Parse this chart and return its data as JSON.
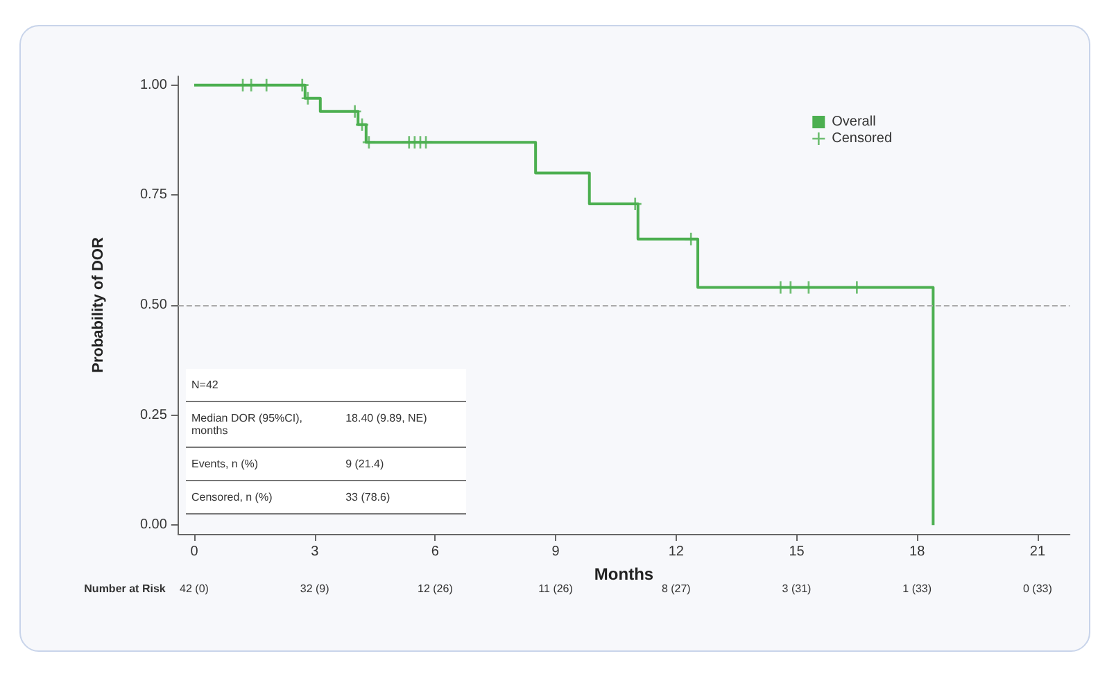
{
  "chart_data": {
    "type": "step",
    "xlabel": "Months",
    "ylabel": "Probability of DOR",
    "xlim": [
      -0.4,
      21.8
    ],
    "xticks": [
      0,
      3,
      6,
      9,
      12,
      15,
      18,
      21
    ],
    "ylim": [
      -0.02,
      1.02
    ],
    "yticks": [
      {
        "value": 0,
        "label": "0.00"
      },
      {
        "value": 0.25,
        "label": "0.25"
      },
      {
        "value": 0.5,
        "label": "0.50"
      },
      {
        "value": 0.75,
        "label": "0.75"
      },
      {
        "value": 1,
        "label": "1.00"
      }
    ],
    "series": [
      {
        "name": "Overall",
        "color": "#4caf50",
        "marker": "none",
        "x": [
          0,
          2.76,
          3.14,
          4.08,
          4.28,
          8.5,
          9.84,
          11.05,
          12.54,
          18.4
        ],
        "values": [
          1,
          0.97,
          0.94,
          0.91,
          0.87,
          0.8,
          0.73,
          0.65,
          0.54,
          0
        ]
      },
      {
        "name": "Censored",
        "type": "scatter",
        "color": "#4caf50",
        "marker": "cross",
        "x": [
          1.21,
          1.42,
          1.8,
          2.69,
          2.83,
          4.0,
          4.18,
          4.35,
          5.35,
          5.49,
          5.63,
          5.77,
          10.98,
          12.37,
          14.6,
          14.85,
          15.3,
          16.5
        ],
        "values": [
          1,
          1,
          1,
          1,
          0.97,
          0.94,
          0.91,
          0.87,
          0.87,
          0.87,
          0.87,
          0.87,
          0.73,
          0.65,
          0.54,
          0.54,
          0.54,
          0.54
        ]
      }
    ],
    "ref_lines": [
      {
        "axis": "y",
        "value": 0.5,
        "label": null,
        "color": "#aaaaaa",
        "line_style": "dashed"
      }
    ],
    "annotations": [
      "N=42",
      "Median DOR (95%CI), months",
      "18.40 (9.89, NE)",
      "Events, n (%)",
      "9 (21.4)",
      "Censored, n (%)",
      "33 (78.6)",
      "Number at Risk",
      "42 (0)",
      "32 (9)",
      "12 (26)",
      "11 (26)",
      "8 (27)",
      "3 (31)",
      "1 (33)",
      "0 (33)"
    ],
    "grid": false,
    "legend": "top right"
  }
}
